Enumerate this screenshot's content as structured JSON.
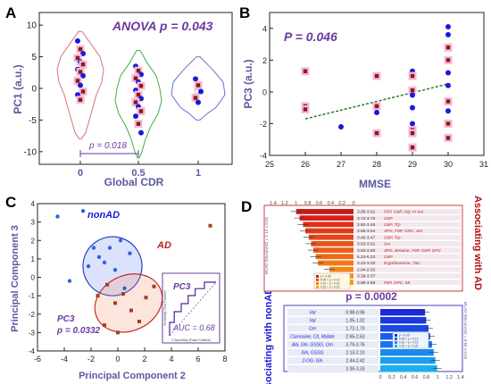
{
  "chart_data": [
    {
      "panel": "A",
      "type": "violin",
      "annotation": "ANOVA p = 0.043",
      "bracket_label": "p = 0.018",
      "xlabel": "Global CDR",
      "ylabel": "PC1 (a.u.)",
      "categories": [
        "0",
        "0.5",
        "1"
      ],
      "ylim": [
        -12,
        12
      ],
      "yticks": [
        "-10",
        "-5",
        "0",
        "5",
        "10"
      ],
      "points": {
        "0": [
          7.5,
          6.2,
          5.5,
          4.8,
          4.2,
          3.8,
          3.0,
          2.6,
          2.0,
          1.2,
          0.5,
          -0.5,
          -1.0,
          -1.8
        ],
        "0.5": [
          3.5,
          2.8,
          2.2,
          1.6,
          1.0,
          0.4,
          -0.3,
          -1.0,
          -1.6,
          -2.2,
          -2.9,
          -3.6,
          -4.4,
          -5.6,
          -7.0
        ],
        "1": [
          1.5,
          0.5,
          -0.5,
          -1.5,
          -2.2
        ]
      },
      "medians": [
        4,
        -1,
        -0.5
      ]
    },
    {
      "panel": "B",
      "type": "scatter",
      "annotation": "P = 0.046",
      "xlabel": "MMSE",
      "ylabel": "PC3 (a.u.)",
      "xlim": [
        25,
        31
      ],
      "ylim": [
        -4,
        5
      ],
      "xticks": [
        "25",
        "26",
        "27",
        "28",
        "29",
        "30",
        "31"
      ],
      "yticks": [
        "-4",
        "-2",
        "0",
        "2",
        "4"
      ],
      "points": [
        {
          "x": 26,
          "y": 1.3,
          "g": "ad"
        },
        {
          "x": 26,
          "y": -0.9,
          "g": "ad"
        },
        {
          "x": 26,
          "y": -1.1,
          "g": "ad"
        },
        {
          "x": 27,
          "y": -2.2,
          "g": "nonad"
        },
        {
          "x": 28,
          "y": 1.0,
          "g": "ad"
        },
        {
          "x": 28,
          "y": -0.9,
          "g": "ad"
        },
        {
          "x": 28,
          "y": -1.3,
          "g": "nonad"
        },
        {
          "x": 28,
          "y": -2.6,
          "g": "ad"
        },
        {
          "x": 29,
          "y": 1.3,
          "g": "nonad"
        },
        {
          "x": 29,
          "y": 1.0,
          "g": "ad"
        },
        {
          "x": 29,
          "y": 0.1,
          "g": "ad"
        },
        {
          "x": 29,
          "y": -0.2,
          "g": "nonad"
        },
        {
          "x": 29,
          "y": -1.0,
          "g": "nonad"
        },
        {
          "x": 29,
          "y": -2.0,
          "g": "nonad"
        },
        {
          "x": 29,
          "y": -2.4,
          "g": "ad"
        },
        {
          "x": 29,
          "y": -2.6,
          "g": "ad"
        },
        {
          "x": 29,
          "y": -3.5,
          "g": "ad"
        },
        {
          "x": 30,
          "y": 4.1,
          "g": "nonad"
        },
        {
          "x": 30,
          "y": 3.6,
          "g": "nonad"
        },
        {
          "x": 30,
          "y": 2.8,
          "g": "ad"
        },
        {
          "x": 30,
          "y": 2.0,
          "g": "ad"
        },
        {
          "x": 30,
          "y": 1.2,
          "g": "nonad"
        },
        {
          "x": 30,
          "y": 0.4,
          "g": "nonad"
        },
        {
          "x": 30,
          "y": -0.6,
          "g": "ad"
        },
        {
          "x": 30,
          "y": -1.2,
          "g": "nonad"
        },
        {
          "x": 30,
          "y": -2.0,
          "g": "ad"
        },
        {
          "x": 30,
          "y": -2.9,
          "g": "ad"
        }
      ],
      "trend": {
        "x": [
          26,
          30
        ],
        "y": [
          -1.7,
          0.5
        ]
      }
    },
    {
      "panel": "C",
      "type": "scatter",
      "xlabel": "Principal Component 2",
      "ylabel": "Principal Component 3",
      "xlim": [
        -6,
        8
      ],
      "ylim": [
        -4,
        4
      ],
      "xticks": [
        "-6",
        "-4",
        "-2",
        "0",
        "2",
        "4",
        "6",
        "8"
      ],
      "yticks": [
        "-4",
        "-3",
        "-2",
        "-1",
        "0",
        "1",
        "2",
        "3",
        "4"
      ],
      "group_labels": [
        "nonAD",
        "AD"
      ],
      "annotation": [
        "PC3",
        "p = 0.0332"
      ],
      "points": [
        {
          "x": -4.5,
          "y": 3.3,
          "g": "nonad"
        },
        {
          "x": -2.6,
          "y": 3.6,
          "g": "nonad"
        },
        {
          "x": -1.8,
          "y": 1.6,
          "g": "nonad"
        },
        {
          "x": -1.4,
          "y": 1.1,
          "g": "nonad"
        },
        {
          "x": -1.0,
          "y": 0.8,
          "g": "nonad"
        },
        {
          "x": -0.6,
          "y": 1.6,
          "g": "nonad"
        },
        {
          "x": -0.2,
          "y": 0.4,
          "g": "nonad"
        },
        {
          "x": 0.2,
          "y": 2.0,
          "g": "nonad"
        },
        {
          "x": 0.5,
          "y": -0.6,
          "g": "nonad"
        },
        {
          "x": 0.9,
          "y": 1.3,
          "g": "nonad"
        },
        {
          "x": -2.2,
          "y": 0.6,
          "g": "nonad"
        },
        {
          "x": -3.6,
          "y": -0.2,
          "g": "nonad"
        },
        {
          "x": -1.5,
          "y": -1.0,
          "g": "ad"
        },
        {
          "x": -0.8,
          "y": -0.4,
          "g": "ad"
        },
        {
          "x": -0.2,
          "y": -1.4,
          "g": "ad"
        },
        {
          "x": 0.4,
          "y": -0.9,
          "g": "ad"
        },
        {
          "x": 1.0,
          "y": -1.8,
          "g": "ad"
        },
        {
          "x": 1.6,
          "y": -2.4,
          "g": "ad"
        },
        {
          "x": 2.1,
          "y": -1.1,
          "g": "ad"
        },
        {
          "x": 0.0,
          "y": -3.0,
          "g": "ad"
        },
        {
          "x": -1.0,
          "y": -2.6,
          "g": "ad"
        },
        {
          "x": 2.7,
          "y": -0.5,
          "g": "ad"
        },
        {
          "x": 6.9,
          "y": 2.8,
          "g": "ad"
        }
      ],
      "ellipses": [
        {
          "g": "nonad",
          "cx": -0.4,
          "cy": 0.6,
          "rx": 2.2,
          "ry": 1.6,
          "angle_deg": -35
        },
        {
          "g": "ad",
          "cx": 0.8,
          "cy": -1.4,
          "rx": 2.6,
          "ry": 1.5,
          "angle_deg": -25
        }
      ],
      "inset": {
        "title": "PC3",
        "auc": "AUC = 0.68",
        "xlabel": "1-Specificity (False Positive)",
        "ylabel": "Sensitivity (True Positive)",
        "roc": [
          [
            0,
            0
          ],
          [
            0,
            0.25
          ],
          [
            0.1,
            0.25
          ],
          [
            0.1,
            0.45
          ],
          [
            0.25,
            0.45
          ],
          [
            0.25,
            0.6
          ],
          [
            0.4,
            0.6
          ],
          [
            0.4,
            0.75
          ],
          [
            0.55,
            0.75
          ],
          [
            0.55,
            0.88
          ],
          [
            0.75,
            0.88
          ],
          [
            0.75,
            1
          ],
          [
            1,
            1
          ]
        ]
      }
    },
    {
      "panel": "D",
      "type": "bar",
      "title_top": "Associating with AD",
      "title_bottom": "Associating with nonAD",
      "p_label": "p = 0.0002",
      "axis_top_ticks": [
        "1.4",
        "1.2",
        "1",
        "0.8",
        "0.6",
        "0.4",
        "0.2",
        "0"
      ],
      "axis_bottom_ticks": [
        "0",
        "0.2",
        "0.4",
        "0.6",
        "0.8",
        "1",
        "1.2",
        "1.4"
      ],
      "side_label_top": "MLAD (MLnonAD) = 1.12 ± 0.01",
      "side_label_bottom": "MLAD (MLnonAD) = 0.84 ± 0.03",
      "legend": [
        "p < 0.05",
        "0.05 < p < 0.10",
        "0.10 < p < 0.15",
        "0.15 < p < 0.20"
      ],
      "ad_bars": [
        {
          "range": "3.95-3.91",
          "label": "F6P, G6P, Gly, m-Ino",
          "value": 1.0
        },
        {
          "range": "3.74-3.70",
          "label": "G6P",
          "value": 0.94
        },
        {
          "range": "3.50-3.49",
          "label": "G6P, Trp",
          "value": 0.88
        },
        {
          "range": "3.96-3.94",
          "label": "3PG, F6P, GPC, Ser",
          "value": 0.84
        },
        {
          "range": "3.48-3.47",
          "label": "G6P, Trp",
          "value": 0.78
        },
        {
          "range": "3.93-3.91",
          "label": "Ser",
          "value": 0.74
        },
        {
          "range": "3.93-3.90",
          "label": "3PG, Betaine, F6P, G6P, GPC",
          "value": 0.7
        },
        {
          "range": "6.24-6.22",
          "label": "G6P",
          "value": 0.66
        },
        {
          "range": "3.43-3.40",
          "label": "Ergothioneine, Tau",
          "value": 0.62
        },
        {
          "range": "2.04-2.02",
          "label": "",
          "value": 0.42
        },
        {
          "range": "3.39-3.37",
          "label": "",
          "value": 0.4
        },
        {
          "range": "3.89-3.86",
          "label": "F6P, GPC, MI",
          "value": 0.52
        }
      ],
      "nonad_bars": [
        {
          "range": "0.98-0.96",
          "label": "Val",
          "value": 0.78
        },
        {
          "range": "1.05-1.02",
          "label": "Val",
          "value": 0.8
        },
        {
          "range": "1.72-1.70",
          "label": "Orn",
          "value": 0.84
        },
        {
          "range": "2.65-2.63",
          "label": "Carnosine, Cit, Malate",
          "value": 0.87
        },
        {
          "range": "3.79-3.76",
          "label": "Ala, Gln, GSSG, Orn",
          "value": 0.9
        },
        {
          "range": "2.13-2.10",
          "label": "Gln, GSSG",
          "value": 0.93
        },
        {
          "range": "2.44-2.42",
          "label": "2-OG, Gln",
          "value": 0.96
        },
        {
          "range": "3.36-3.33",
          "label": "",
          "value": 0.99
        }
      ]
    }
  ],
  "colors": {
    "ad": "#8b1a1a",
    "ad_halo": "#f5b8d6",
    "nonad": "#1a1adb",
    "label_purple": "#6a3aa0",
    "axis_label": "#5a5aa0",
    "bar_red": "#d8281a",
    "bar_orange": "#f08a1a",
    "bar_blue": "#2050e0",
    "bar_cyan": "#1aa8e0"
  }
}
